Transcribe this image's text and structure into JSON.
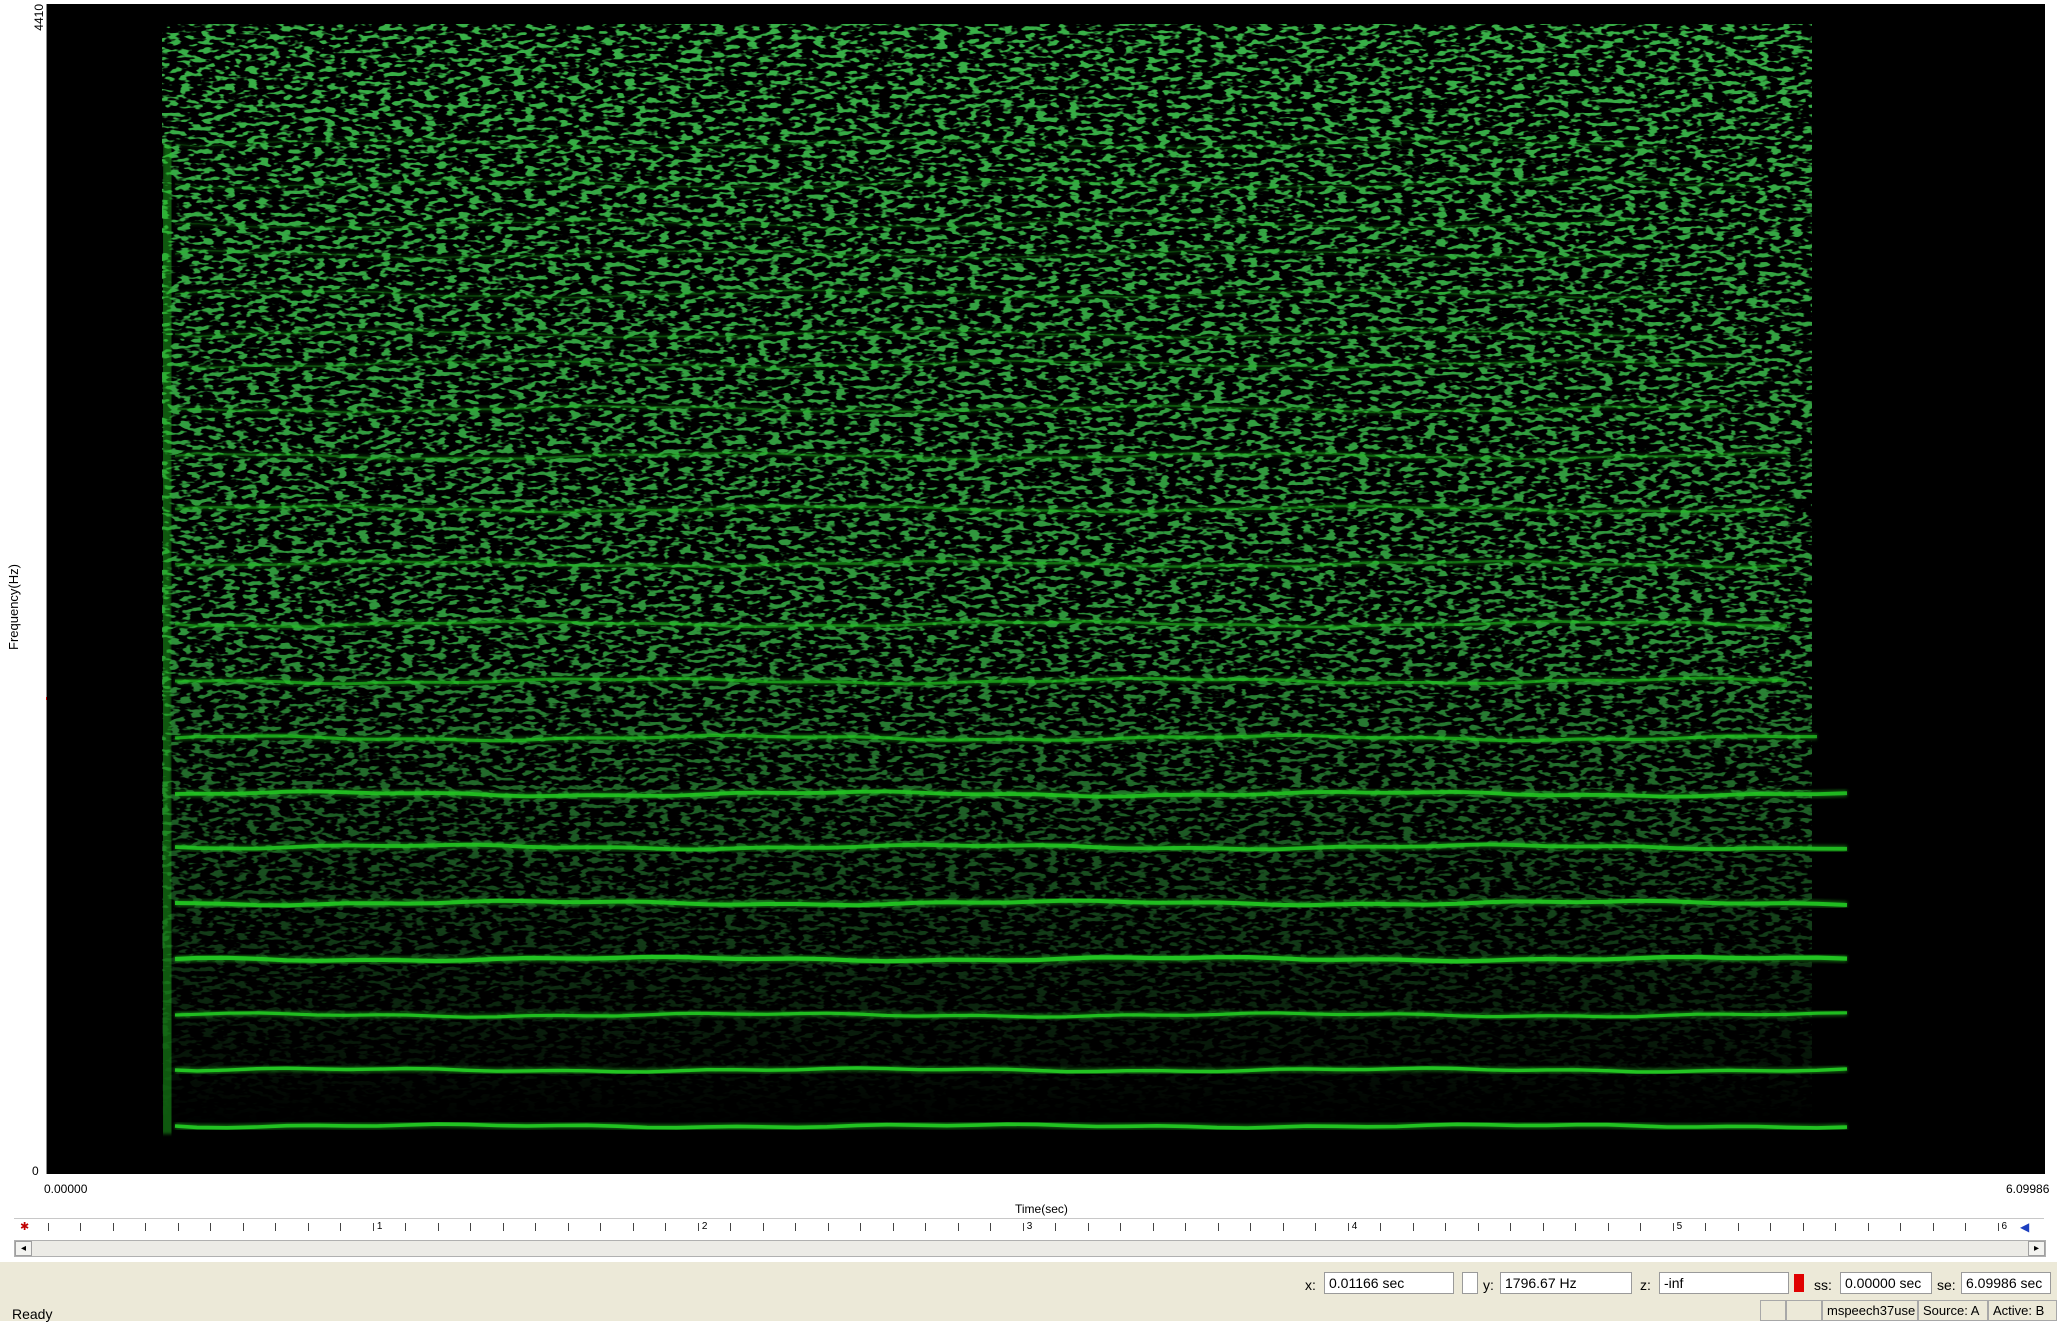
{
  "axes": {
    "y_label": "Frequency(Hz)",
    "y_max": "4410",
    "y_min": "0",
    "x_label": "Time(sec)",
    "x_start": "0.00000",
    "x_end": "6.09986"
  },
  "ruler": {
    "labels": [
      "1",
      "2",
      "3",
      "4",
      "5",
      "6"
    ]
  },
  "colors": {
    "spectrogram_background": "#000000",
    "harmonic": "#22c322",
    "status_bar": "#ece9d8",
    "record_indicator": "#e00000"
  },
  "readouts": {
    "x_label": "x:",
    "x_value": "0.01166 sec",
    "y_label": "y:",
    "y_value": "1796.67 Hz",
    "z_label": "z:",
    "z_value": "-inf",
    "ss_label": "ss:",
    "ss_value": "0.00000 sec",
    "se_label": "se:",
    "se_value": "6.09986 sec"
  },
  "status": {
    "text": "Ready",
    "file": "mspeech37use",
    "source": "Source: A",
    "active": "Active: B"
  },
  "icons": {
    "ruler_start": "playhead-start-icon",
    "ruler_end": "playhead-end-icon",
    "scroll_left": "arrow-left-icon",
    "scroll_right": "arrow-right-icon"
  }
}
